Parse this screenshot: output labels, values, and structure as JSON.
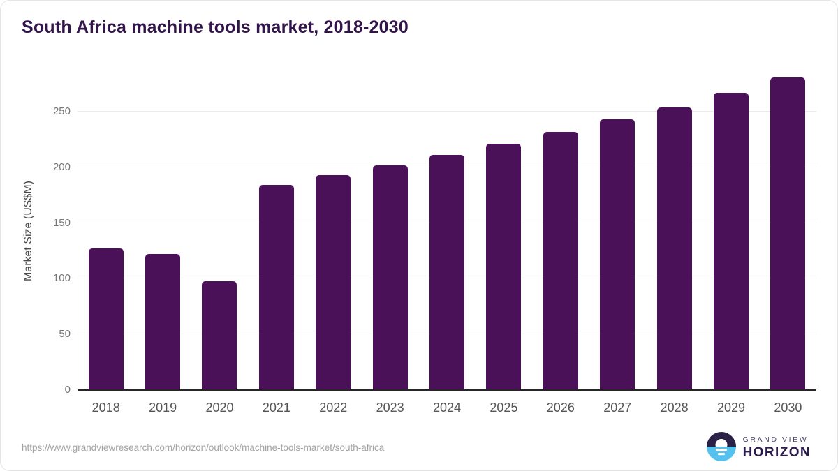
{
  "title": "South Africa machine tools market, 2018-2030",
  "chart_data": {
    "type": "bar",
    "title": "South Africa machine tools market, 2018-2030",
    "categories": [
      "2018",
      "2019",
      "2020",
      "2021",
      "2022",
      "2023",
      "2024",
      "2025",
      "2026",
      "2027",
      "2028",
      "2029",
      "2030"
    ],
    "values": [
      127,
      122,
      98,
      184,
      193,
      202,
      211,
      221,
      232,
      243,
      254,
      267,
      281
    ],
    "xlabel": "",
    "ylabel": "Market Size (US$M)",
    "ylim": [
      0,
      287
    ],
    "yticks": [
      0,
      50,
      100,
      150,
      200,
      250
    ],
    "grid": "horizontal",
    "legend": "none",
    "bar_color": "#4a1159"
  },
  "colors": {
    "bar": "#4a1159",
    "title_text": "#33154b",
    "axis_line": "#262626",
    "gridline": "#ebebeb",
    "tick_text": "#767676",
    "xlabel_text": "#565656",
    "logo_navy": "#2b2045",
    "logo_blue": "#55c1ef"
  },
  "footer": {
    "source_url": "https://www.grandviewresearch.com/horizon/outlook/machine-tools-market/south-africa",
    "logo": {
      "line1": "GRAND VIEW",
      "line2": "HORIZON"
    }
  }
}
